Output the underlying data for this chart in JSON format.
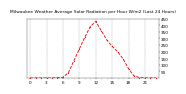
{
  "title": "Milwaukee Weather Average Solar Radiation per Hour W/m2 (Last 24 Hours)",
  "x_values": [
    0,
    1,
    2,
    3,
    4,
    5,
    6,
    7,
    8,
    9,
    10,
    11,
    12,
    13,
    14,
    15,
    16,
    17,
    18,
    19,
    20,
    21,
    22,
    23
  ],
  "y_values": [
    0,
    0,
    0,
    0,
    0,
    2,
    5,
    40,
    130,
    220,
    310,
    390,
    430,
    360,
    290,
    240,
    200,
    145,
    70,
    15,
    3,
    0,
    0,
    0
  ],
  "line_color": "#dd0000",
  "bg_color": "#ffffff",
  "grid_color": "#999999",
  "ylim": [
    0,
    450
  ],
  "ytick_values": [
    50,
    100,
    150,
    200,
    250,
    300,
    350,
    400,
    450
  ],
  "xtick_major": [
    0,
    3,
    6,
    9,
    12,
    15,
    18,
    21
  ],
  "ylabel_fontsize": 3.0,
  "xlabel_fontsize": 3.0,
  "title_fontsize": 3.2,
  "line_width": 0.6,
  "marker_size": 1.0
}
